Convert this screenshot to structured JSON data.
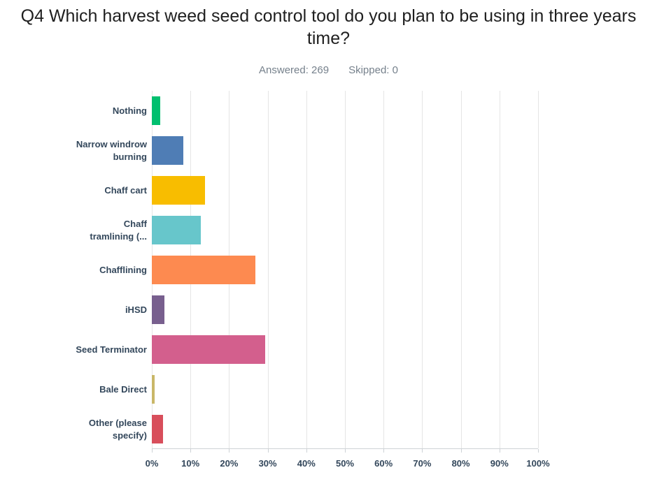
{
  "header": {
    "title": "Q4 Which harvest weed seed control tool do you plan to be using in three years time?",
    "answered_label": "Answered: 269",
    "skipped_label": "Skipped: 0"
  },
  "chart_data": {
    "type": "bar",
    "orientation": "horizontal",
    "title": "Q4 Which harvest weed seed control tool do you plan to be using in three years time?",
    "categories": [
      "Nothing",
      "Narrow windrow burning",
      "Chaff cart",
      "Chaff tramlining (...",
      "Chafflining",
      "iHSD",
      "Seed Terminator",
      "Bale Direct",
      "Other (please specify)"
    ],
    "category_display_lines": [
      [
        "Nothing"
      ],
      [
        "Narrow windrow",
        "burning"
      ],
      [
        "Chaff cart"
      ],
      [
        "Chaff",
        "tramlining (..."
      ],
      [
        "Chafflining"
      ],
      [
        "iHSD"
      ],
      [
        "Seed Terminator"
      ],
      [
        "Bale Direct"
      ],
      [
        "Other (please",
        "specify)"
      ]
    ],
    "values": [
      2.23,
      8.18,
      13.75,
      12.64,
      26.77,
      3.35,
      29.37,
      0.74,
      2.97
    ],
    "value_unit": "%",
    "bar_colors": [
      "#00bf6f",
      "#4f7db5",
      "#f8bd00",
      "#67c6cb",
      "#fd8a50",
      "#785f8e",
      "#d35f8d",
      "#c9b768",
      "#d84e5b"
    ],
    "xlabel": "",
    "ylabel": "",
    "xlim": [
      0,
      100
    ],
    "x_tick_step": 10,
    "x_tick_labels": [
      "0%",
      "10%",
      "20%",
      "30%",
      "40%",
      "50%",
      "60%",
      "70%",
      "80%",
      "90%",
      "100%"
    ],
    "grid": "vertical",
    "legend": "none",
    "style": {
      "label_color": "#33475b",
      "title_color": "#1f1f1f",
      "subtitle_color": "#76818c",
      "grid_color": "#e5e5e5",
      "axis_line_color": "#cdd2d6"
    }
  }
}
